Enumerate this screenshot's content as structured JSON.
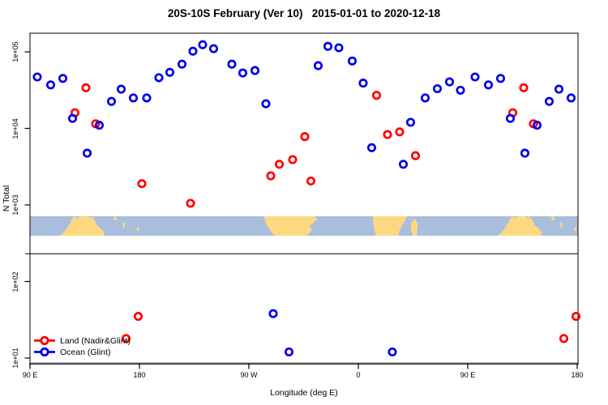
{
  "title": "20S-10S February (Ver 10)   2015-01-01 to 2020-12-18",
  "legend": {
    "items": [
      {
        "label": "Land (Nadir&Glint)",
        "color": "#ff0000"
      },
      {
        "label": "Ocean (Glint)",
        "color": "#0000ee"
      }
    ]
  },
  "chart_data": {
    "type": "scatter",
    "title": "20S-10S February (Ver 10)   2015-01-01 to 2020-12-18",
    "xlabel": "Longitude (deg E)",
    "ylabel": "N Total",
    "grid": false,
    "legend_position": "bottom-left-inside",
    "x_axis": {
      "labels": [
        "90 E",
        "180",
        "90 W",
        "0",
        "90 E",
        "180"
      ],
      "tick_lons": [
        90,
        180,
        270,
        360,
        450,
        540
      ],
      "range_deg": [
        90,
        540
      ],
      "note": "axis spans 450 deg of longitude; band 90E-180E is plotted twice (wraparound)"
    },
    "y_axis": {
      "labels": [
        "1e+05",
        "1e+04",
        "1e+03",
        "1e+02",
        "1e+01"
      ],
      "tick_values": [
        100000,
        10000,
        1000,
        100,
        10
      ],
      "scale": "log10",
      "range": [
        10,
        100000
      ]
    },
    "separator_line_value": 230,
    "series": [
      {
        "name": "Land (Nadir&Glint)",
        "color": "#ff0000",
        "marker": "open-circle",
        "points": [
          [
            136,
            34000
          ],
          [
            127,
            16000
          ],
          [
            144,
            11500
          ],
          [
            182,
            1900
          ],
          [
            222,
            1050
          ],
          [
            288,
            2400
          ],
          [
            295,
            3400
          ],
          [
            306,
            3900
          ],
          [
            316,
            7800
          ],
          [
            321,
            2050
          ],
          [
            375,
            27000
          ],
          [
            384,
            8300
          ],
          [
            394,
            9000
          ],
          [
            407,
            4400
          ],
          [
            487,
            16000
          ],
          [
            496,
            34000
          ],
          [
            504,
            11500
          ],
          [
            169,
            18
          ],
          [
            179,
            35
          ],
          [
            529,
            18
          ],
          [
            539,
            35
          ]
        ]
      },
      {
        "name": "Ocean (Glint)",
        "color": "#0000ee",
        "marker": "open-circle",
        "points": [
          [
            96,
            47000
          ],
          [
            107,
            37000
          ],
          [
            117,
            45000
          ],
          [
            125,
            13500
          ],
          [
            137,
            4750
          ],
          [
            147,
            11000
          ],
          [
            157,
            22500
          ],
          [
            165,
            32500
          ],
          [
            175,
            25000
          ],
          [
            186,
            25000
          ],
          [
            196,
            46000
          ],
          [
            205,
            54000
          ],
          [
            215,
            69000
          ],
          [
            224,
            102000
          ],
          [
            232,
            124000
          ],
          [
            241,
            110000
          ],
          [
            256,
            69000
          ],
          [
            265,
            53000
          ],
          [
            275,
            57000
          ],
          [
            284,
            21000
          ],
          [
            327,
            66000
          ],
          [
            335,
            118000
          ],
          [
            344,
            113000
          ],
          [
            355,
            76000
          ],
          [
            364,
            39000
          ],
          [
            371,
            5600
          ],
          [
            397,
            3400
          ],
          [
            403,
            12000
          ],
          [
            415,
            25000
          ],
          [
            425,
            33000
          ],
          [
            435,
            40500
          ],
          [
            444,
            31500
          ],
          [
            456,
            47000
          ],
          [
            467,
            37000
          ],
          [
            477,
            45000
          ],
          [
            485,
            13500
          ],
          [
            497,
            4750
          ],
          [
            507,
            11000
          ],
          [
            517,
            22500
          ],
          [
            525,
            32500
          ],
          [
            535,
            25000
          ],
          [
            290,
            38
          ],
          [
            303,
            12
          ],
          [
            388,
            12
          ]
        ]
      }
    ],
    "map_band": {
      "description": "World coastline strip for latitude band 20S to 10S drawn across plot between N ~400 and ~700",
      "ocean_color": "#a9bedd",
      "land_color": "#fcd981",
      "land_polygons_lon_frac": {
        "australia": [
          [
            114,
            1
          ],
          [
            117,
            0.88
          ],
          [
            120,
            0.65
          ],
          [
            122,
            0.45
          ],
          [
            124,
            0.3
          ],
          [
            127,
            0.14
          ],
          [
            130,
            0.05
          ],
          [
            133,
            0
          ],
          [
            137,
            0
          ],
          [
            139,
            0.07
          ],
          [
            141,
            0.02
          ],
          [
            143,
            0.2
          ],
          [
            145,
            0.45
          ],
          [
            148,
            0.62
          ],
          [
            151,
            0.82
          ],
          [
            150.5,
            1
          ]
        ],
        "timor": [
          [
            123.5,
            0.3
          ],
          [
            125,
            0.08
          ],
          [
            128,
            0.02
          ],
          [
            128.5,
            0.18
          ],
          [
            125.5,
            0.35
          ]
        ],
        "solomons": [
          [
            158.5,
            0.05
          ],
          [
            161,
            0
          ],
          [
            161.5,
            0.18
          ],
          [
            159,
            0.22
          ]
        ],
        "vanuatu": [
          [
            166,
            0.35
          ],
          [
            167.5,
            0.3
          ],
          [
            168,
            0.55
          ],
          [
            166.5,
            0.6
          ]
        ],
        "fiji": [
          [
            177.5,
            0.6
          ],
          [
            179.5,
            0.55
          ],
          [
            179.5,
            0.75
          ],
          [
            178,
            0.78
          ]
        ],
        "south_america": [
          [
            282,
            0
          ],
          [
            324,
            0
          ],
          [
            326,
            0.15
          ],
          [
            320,
            0.5
          ],
          [
            322,
            0.7
          ],
          [
            318,
            1
          ],
          [
            291,
            1
          ],
          [
            285,
            0.5
          ]
        ],
        "africa": [
          [
            12,
            0
          ],
          [
            40,
            0
          ],
          [
            37,
            0.35
          ],
          [
            34,
            0.7
          ],
          [
            33,
            1
          ],
          [
            14.5,
            1
          ],
          [
            12.5,
            0.5
          ]
        ],
        "madagascar": [
          [
            43.5,
            0.35
          ],
          [
            46.5,
            0.12
          ],
          [
            49,
            0.4
          ],
          [
            48,
            1
          ],
          [
            45,
            1
          ],
          [
            43,
            0.65
          ]
        ]
      }
    }
  }
}
